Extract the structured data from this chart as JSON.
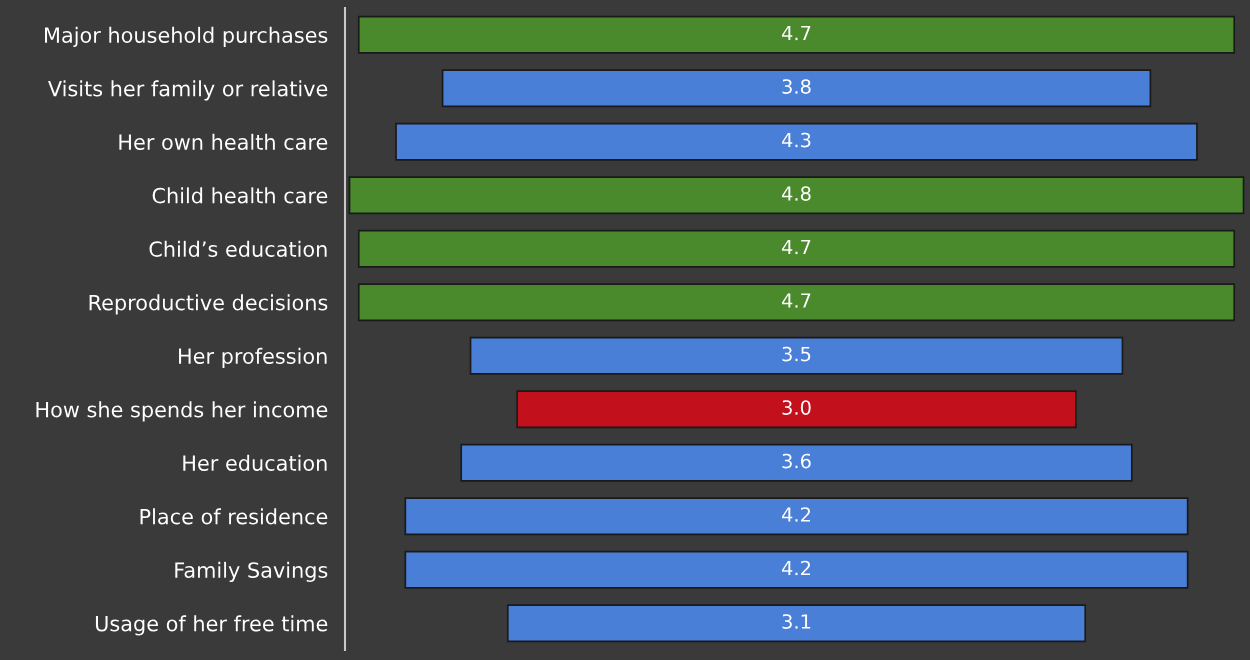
{
  "chart_data": {
    "type": "other",
    "categories": [
      "Major household purchases",
      "Visits her family or relative",
      "Her own health care",
      "Child health care",
      "Child’s education",
      "Reproductive decisions",
      "Her profession",
      "How she spends her income",
      "Her education",
      "Place of residence",
      "Family Savings",
      "Usage of her free time"
    ],
    "values": [
      4.7,
      3.8,
      4.3,
      4.8,
      4.7,
      4.7,
      3.5,
      3.0,
      3.6,
      4.2,
      4.2,
      3.1
    ],
    "value_labels": [
      "4.7",
      "3.8",
      "4.3",
      "4.8",
      "4.7",
      "4.7",
      "3.5",
      "3.0",
      "3.6",
      "4.2",
      "4.2",
      "3.1"
    ],
    "colors": [
      "#4a8a2c",
      "#4a7fd8",
      "#4a7fd8",
      "#4a8a2c",
      "#4a8a2c",
      "#4a8a2c",
      "#4a7fd8",
      "#c2101c",
      "#4a7fd8",
      "#4a7fd8",
      "#4a7fd8",
      "#4a7fd8"
    ]
  }
}
